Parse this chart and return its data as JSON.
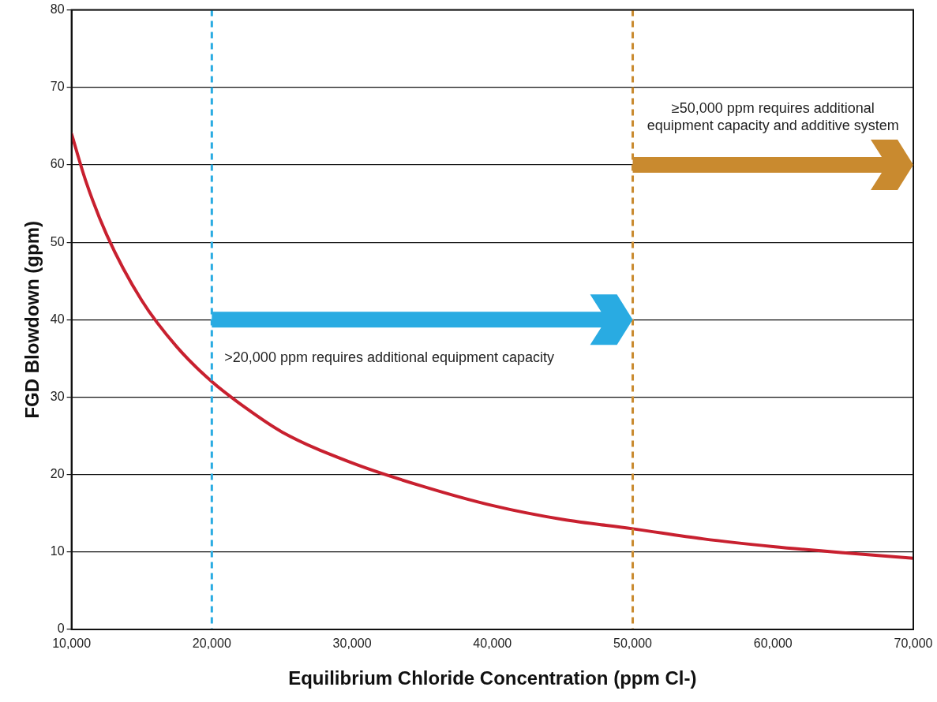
{
  "chart_data": {
    "type": "line",
    "xlabel": "Equilibrium Chloride Concentration (ppm Cl-)",
    "ylabel": "FGD Blowdown (gpm)",
    "x": [
      10000,
      11000,
      12500,
      15000,
      17500,
      20000,
      22500,
      25000,
      30000,
      35000,
      40000,
      45000,
      50000,
      55000,
      60000,
      65000,
      70000
    ],
    "series": [
      {
        "color": "#c8202f",
        "values": [
          64,
          58,
          51,
          42.5,
          36.5,
          32,
          28.5,
          25.5,
          21.5,
          18.5,
          16,
          14.2,
          13,
          11.7,
          10.7,
          9.9,
          9.2
        ]
      }
    ],
    "xlim": [
      10000,
      70000
    ],
    "xticks": [
      {
        "value": 10000,
        "label": "10,000"
      },
      {
        "value": 20000,
        "label": "20,000"
      },
      {
        "value": 30000,
        "label": "30,000"
      },
      {
        "value": 40000,
        "label": "40,000"
      },
      {
        "value": 50000,
        "label": "50,000"
      },
      {
        "value": 60000,
        "label": "60,000"
      },
      {
        "value": 70000,
        "label": "70,000"
      }
    ],
    "ylim": [
      0,
      80
    ],
    "yticks": [
      0,
      10,
      20,
      30,
      40,
      50,
      60,
      70,
      80
    ],
    "grid": "y",
    "legend": false,
    "marker": "none",
    "line_style": "solid",
    "ref_lines": [
      {
        "axis": "x",
        "value": 20000,
        "color": "#29abe2",
        "line_style": "dashed"
      },
      {
        "axis": "x",
        "value": 50000,
        "color": "#c98a2f",
        "line_style": "dashed"
      }
    ],
    "annotations": [
      ">20,000 ppm requires additional equipment capacity",
      "≥50,000 ppm requires additional equipment capacity and additive system"
    ]
  }
}
